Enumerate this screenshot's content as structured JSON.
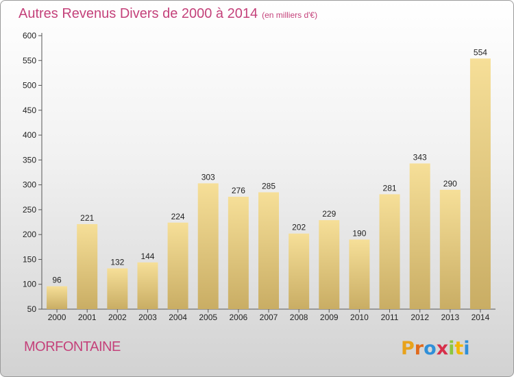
{
  "header": {
    "title": "Autres Revenus Divers de 2000 à 2014",
    "subtitle": "(en milliers d'€)"
  },
  "footer": {
    "city": "MORFONTAINE",
    "logo_text": "Proxiti"
  },
  "colors": {
    "title": "#c4417a",
    "bar_light": "#f6df98",
    "bar_dark": "#c9ad64",
    "logo_letters": [
      "#e8a21b",
      "#e06a1c",
      "#2f8fd8",
      "#d72f4a",
      "#8cc63f",
      "#f2b705",
      "#2f8fd8"
    ]
  },
  "chart_data": {
    "type": "bar",
    "categories": [
      "2000",
      "2001",
      "2002",
      "2003",
      "2004",
      "2005",
      "2006",
      "2007",
      "2008",
      "2009",
      "2010",
      "2011",
      "2012",
      "2013",
      "2014"
    ],
    "values": [
      96,
      221,
      132,
      144,
      224,
      303,
      276,
      285,
      202,
      229,
      190,
      281,
      343,
      290,
      554
    ],
    "ylim": [
      50,
      600
    ],
    "yticks": [
      50,
      100,
      150,
      200,
      250,
      300,
      350,
      400,
      450,
      500,
      550,
      600
    ],
    "grid": false,
    "legend": "none"
  }
}
